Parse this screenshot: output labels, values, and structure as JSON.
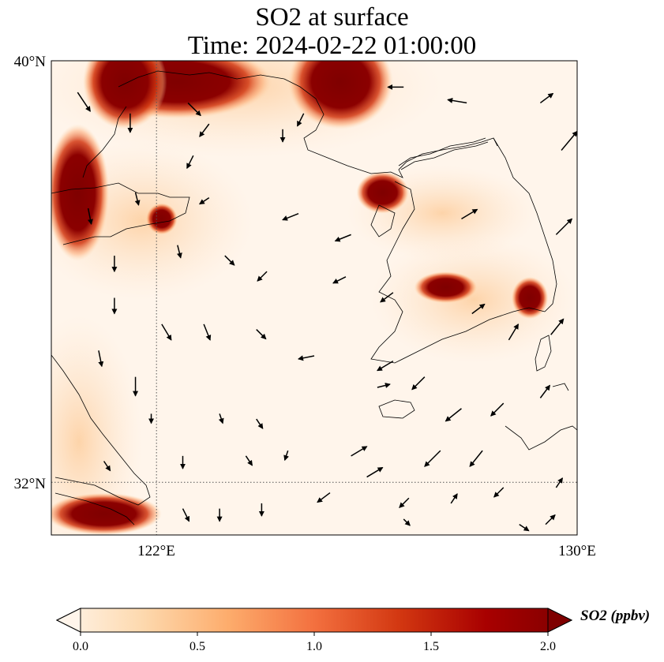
{
  "title": {
    "line1": "SO2 at surface",
    "line2": "Time: 2024-02-22 01:00:00"
  },
  "map": {
    "lat_range": [
      31.0,
      40.0
    ],
    "lon_range": [
      120.0,
      130.0
    ],
    "gridlines": {
      "lat": 32,
      "lon": 122
    },
    "y_ticks": [
      {
        "value": 40,
        "label": "40°N"
      },
      {
        "value": 32,
        "label": "32°N"
      }
    ],
    "x_ticks": [
      {
        "value": 122,
        "label": "122°E"
      },
      {
        "value": 130,
        "label": "130°E"
      }
    ],
    "hotspots": [
      {
        "lon": 122.4,
        "lat": 39.6,
        "rx": 1.8,
        "ry": 0.7
      },
      {
        "lon": 121.4,
        "lat": 39.6,
        "rx": 0.8,
        "ry": 0.9
      },
      {
        "lon": 125.5,
        "lat": 39.6,
        "rx": 1.0,
        "ry": 0.9
      },
      {
        "lon": 120.5,
        "lat": 37.5,
        "rx": 0.6,
        "ry": 1.3
      },
      {
        "lon": 122.1,
        "lat": 37.0,
        "rx": 0.3,
        "ry": 0.3
      },
      {
        "lon": 126.3,
        "lat": 37.5,
        "rx": 0.5,
        "ry": 0.4
      },
      {
        "lon": 127.5,
        "lat": 35.7,
        "rx": 0.6,
        "ry": 0.3
      },
      {
        "lon": 129.1,
        "lat": 35.5,
        "rx": 0.35,
        "ry": 0.4
      },
      {
        "lon": 121.0,
        "lat": 31.4,
        "rx": 1.1,
        "ry": 0.4
      }
    ],
    "wind_vectors": [
      {
        "lon": 120.5,
        "lat": 39.4,
        "u": 0.4,
        "v": -0.6
      },
      {
        "lon": 121.5,
        "lat": 39.0,
        "u": 0.0,
        "v": -0.6
      },
      {
        "lon": 122.6,
        "lat": 39.2,
        "u": 0.4,
        "v": -0.4
      },
      {
        "lon": 124.8,
        "lat": 39.0,
        "u": -0.2,
        "v": -0.4
      },
      {
        "lon": 126.7,
        "lat": 39.5,
        "u": -0.5,
        "v": 0.0
      },
      {
        "lon": 127.9,
        "lat": 39.2,
        "u": -0.6,
        "v": 0.1
      },
      {
        "lon": 129.3,
        "lat": 39.2,
        "u": 0.4,
        "v": 0.3
      },
      {
        "lon": 122.7,
        "lat": 38.2,
        "u": -0.2,
        "v": -0.4
      },
      {
        "lon": 123.0,
        "lat": 38.8,
        "u": -0.3,
        "v": -0.4
      },
      {
        "lon": 124.4,
        "lat": 38.7,
        "u": 0.0,
        "v": -0.4
      },
      {
        "lon": 129.7,
        "lat": 38.3,
        "u": 0.5,
        "v": 0.6
      },
      {
        "lon": 120.7,
        "lat": 37.2,
        "u": 0.1,
        "v": -0.5
      },
      {
        "lon": 121.6,
        "lat": 37.5,
        "u": 0.1,
        "v": -0.4
      },
      {
        "lon": 123.0,
        "lat": 37.4,
        "u": -0.3,
        "v": -0.2
      },
      {
        "lon": 124.7,
        "lat": 37.1,
        "u": -0.5,
        "v": -0.2
      },
      {
        "lon": 125.7,
        "lat": 36.7,
        "u": -0.5,
        "v": -0.2
      },
      {
        "lon": 127.8,
        "lat": 37.0,
        "u": 0.5,
        "v": 0.3
      },
      {
        "lon": 129.6,
        "lat": 36.7,
        "u": 0.5,
        "v": 0.5
      },
      {
        "lon": 121.2,
        "lat": 36.3,
        "u": 0.0,
        "v": -0.5
      },
      {
        "lon": 122.4,
        "lat": 36.5,
        "u": 0.1,
        "v": -0.4
      },
      {
        "lon": 123.3,
        "lat": 36.3,
        "u": 0.3,
        "v": -0.3
      },
      {
        "lon": 124.1,
        "lat": 36.0,
        "u": -0.3,
        "v": -0.3
      },
      {
        "lon": 125.6,
        "lat": 35.9,
        "u": -0.4,
        "v": -0.2
      },
      {
        "lon": 126.5,
        "lat": 35.6,
        "u": -0.4,
        "v": -0.3
      },
      {
        "lon": 128.0,
        "lat": 35.2,
        "u": 0.4,
        "v": 0.3
      },
      {
        "lon": 129.5,
        "lat": 34.8,
        "u": 0.4,
        "v": 0.5
      },
      {
        "lon": 121.2,
        "lat": 35.5,
        "u": 0.0,
        "v": -0.5
      },
      {
        "lon": 122.1,
        "lat": 35.0,
        "u": 0.3,
        "v": -0.5
      },
      {
        "lon": 122.9,
        "lat": 35.0,
        "u": 0.2,
        "v": -0.5
      },
      {
        "lon": 123.9,
        "lat": 34.9,
        "u": 0.3,
        "v": -0.3
      },
      {
        "lon": 125.0,
        "lat": 34.4,
        "u": -0.5,
        "v": -0.1
      },
      {
        "lon": 126.5,
        "lat": 34.3,
        "u": -0.5,
        "v": -0.3
      },
      {
        "lon": 127.1,
        "lat": 34.0,
        "u": -0.4,
        "v": -0.4
      },
      {
        "lon": 128.7,
        "lat": 34.7,
        "u": 0.3,
        "v": 0.5
      },
      {
        "lon": 120.9,
        "lat": 34.5,
        "u": 0.1,
        "v": -0.5
      },
      {
        "lon": 121.6,
        "lat": 34.0,
        "u": 0.0,
        "v": -0.6
      },
      {
        "lon": 121.9,
        "lat": 33.3,
        "u": 0.0,
        "v": -0.3
      },
      {
        "lon": 123.2,
        "lat": 33.3,
        "u": 0.1,
        "v": -0.3
      },
      {
        "lon": 123.9,
        "lat": 33.2,
        "u": 0.2,
        "v": -0.3
      },
      {
        "lon": 126.2,
        "lat": 33.8,
        "u": 0.4,
        "v": 0.1
      },
      {
        "lon": 127.8,
        "lat": 33.4,
        "u": -0.5,
        "v": -0.4
      },
      {
        "lon": 128.6,
        "lat": 33.5,
        "u": -0.4,
        "v": -0.4
      },
      {
        "lon": 129.3,
        "lat": 33.6,
        "u": 0.3,
        "v": 0.4
      },
      {
        "lon": 122.5,
        "lat": 32.5,
        "u": 0.0,
        "v": -0.4
      },
      {
        "lon": 123.7,
        "lat": 32.5,
        "u": 0.2,
        "v": -0.3
      },
      {
        "lon": 124.5,
        "lat": 32.6,
        "u": -0.1,
        "v": -0.3
      },
      {
        "lon": 125.7,
        "lat": 32.5,
        "u": 0.5,
        "v": 0.3
      },
      {
        "lon": 126.0,
        "lat": 32.1,
        "u": 0.5,
        "v": 0.3
      },
      {
        "lon": 127.4,
        "lat": 32.6,
        "u": -0.5,
        "v": -0.5
      },
      {
        "lon": 128.2,
        "lat": 32.6,
        "u": -0.4,
        "v": -0.5
      },
      {
        "lon": 121.0,
        "lat": 32.4,
        "u": 0.2,
        "v": -0.3
      },
      {
        "lon": 125.3,
        "lat": 31.8,
        "u": -0.4,
        "v": -0.3
      },
      {
        "lon": 126.8,
        "lat": 31.7,
        "u": -0.3,
        "v": -0.3
      },
      {
        "lon": 127.6,
        "lat": 31.6,
        "u": 0.2,
        "v": 0.3
      },
      {
        "lon": 128.6,
        "lat": 31.9,
        "u": -0.3,
        "v": -0.3
      },
      {
        "lon": 129.6,
        "lat": 31.9,
        "u": 0.2,
        "v": 0.3
      },
      {
        "lon": 122.5,
        "lat": 31.5,
        "u": 0.2,
        "v": -0.4
      },
      {
        "lon": 123.2,
        "lat": 31.5,
        "u": 0.0,
        "v": -0.4
      },
      {
        "lon": 124.0,
        "lat": 31.6,
        "u": 0.0,
        "v": -0.4
      },
      {
        "lon": 126.7,
        "lat": 31.3,
        "u": 0.2,
        "v": -0.2
      },
      {
        "lon": 128.9,
        "lat": 31.2,
        "u": 0.3,
        "v": -0.2
      },
      {
        "lon": 129.4,
        "lat": 31.2,
        "u": 0.3,
        "v": 0.3
      }
    ]
  },
  "colorbar": {
    "label": "SO2 (ppbv)",
    "range": [
      0.0,
      2.0
    ],
    "ticks": [
      "0.0",
      "0.5",
      "1.0",
      "1.5",
      "2.0"
    ],
    "cmap": [
      "#fff5eb",
      "#fdd9ae",
      "#fdac6c",
      "#f3703f",
      "#d23711",
      "#a80000",
      "#7f0000"
    ],
    "extend": "both"
  }
}
